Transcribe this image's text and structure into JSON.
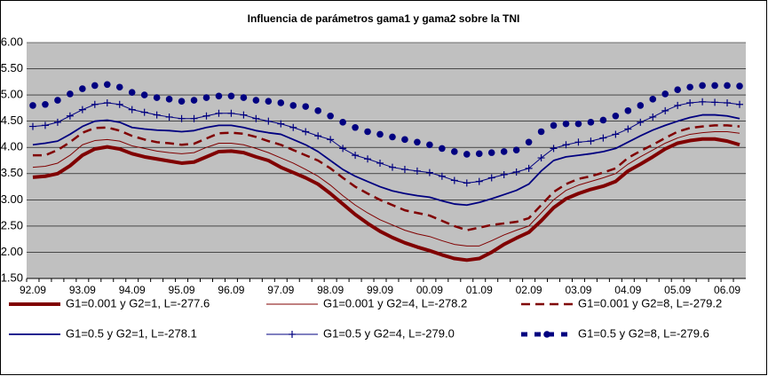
{
  "chart_data": {
    "type": "line",
    "title": "Influencia de parámetros gama1 y gama2 sobre la TNI",
    "categories": [
      "92.09",
      null,
      null,
      null,
      "93.09",
      null,
      null,
      null,
      "94.09",
      null,
      null,
      null,
      "95.09",
      null,
      null,
      null,
      "96.09",
      null,
      null,
      null,
      "97.09",
      null,
      null,
      null,
      "98.09",
      null,
      null,
      null,
      "99.09",
      null,
      null,
      null,
      "00.09",
      null,
      null,
      null,
      "01.09",
      null,
      null,
      null,
      "02.09",
      null,
      null,
      null,
      "03.09",
      null,
      null,
      null,
      "04.09",
      null,
      null,
      null,
      "05.09",
      null,
      null,
      null,
      "06.09",
      null
    ],
    "ylim": [
      1.5,
      6.0
    ],
    "yticks": [
      {
        "value": 1.5,
        "label": "1.50"
      },
      {
        "value": 2.0,
        "label": "2.00"
      },
      {
        "value": 2.5,
        "label": "2.50"
      },
      {
        "value": 3.0,
        "label": "3.00"
      },
      {
        "value": 3.5,
        "label": "3.50"
      },
      {
        "value": 4.0,
        "label": "4.00"
      },
      {
        "value": 4.5,
        "label": "4.50"
      },
      {
        "value": 5.0,
        "label": "5.00"
      },
      {
        "value": 5.5,
        "label": "5.50"
      },
      {
        "value": 6.0,
        "label": "6.00"
      }
    ],
    "grid": true,
    "legend": "bottom",
    "series": [
      {
        "name": "G1=0.001 y G2=1, L=-277.6",
        "color": "#800000",
        "line_style": "thick",
        "marker": "none",
        "values": [
          3.43,
          3.45,
          3.5,
          3.65,
          3.85,
          3.97,
          4.01,
          3.97,
          3.88,
          3.82,
          3.78,
          3.74,
          3.7,
          3.72,
          3.82,
          3.92,
          3.93,
          3.9,
          3.82,
          3.75,
          3.62,
          3.52,
          3.42,
          3.3,
          3.12,
          2.92,
          2.72,
          2.55,
          2.4,
          2.28,
          2.18,
          2.1,
          2.03,
          1.95,
          1.88,
          1.85,
          1.88,
          2.0,
          2.15,
          2.27,
          2.38,
          2.6,
          2.85,
          3.02,
          3.12,
          3.2,
          3.26,
          3.35,
          3.55,
          3.68,
          3.82,
          3.97,
          4.08,
          4.13,
          4.16,
          4.16,
          4.12,
          4.05
        ]
      },
      {
        "name": "G1=0.001 y G2=4, L=-278.2",
        "color": "#800000",
        "line_style": "thin",
        "marker": "none",
        "values": [
          3.62,
          3.64,
          3.7,
          3.85,
          4.05,
          4.13,
          4.15,
          4.12,
          4.03,
          3.98,
          3.93,
          3.9,
          3.88,
          3.9,
          4.0,
          4.08,
          4.08,
          4.05,
          3.98,
          3.9,
          3.8,
          3.7,
          3.58,
          3.45,
          3.28,
          3.08,
          2.9,
          2.75,
          2.62,
          2.52,
          2.42,
          2.35,
          2.3,
          2.22,
          2.15,
          2.12,
          2.12,
          2.22,
          2.33,
          2.42,
          2.5,
          2.75,
          3.0,
          3.18,
          3.28,
          3.35,
          3.42,
          3.5,
          3.68,
          3.82,
          3.95,
          4.08,
          4.18,
          4.25,
          4.28,
          4.3,
          4.3,
          4.27
        ]
      },
      {
        "name": "G1=0.001 y G2=8, L=-279.2",
        "color": "#800000",
        "line_style": "dashed",
        "marker": "none",
        "values": [
          3.85,
          3.85,
          3.95,
          4.1,
          4.28,
          4.37,
          4.38,
          4.32,
          4.22,
          4.15,
          4.1,
          4.08,
          4.05,
          4.07,
          4.17,
          4.27,
          4.28,
          4.26,
          4.2,
          4.12,
          4.05,
          3.95,
          3.85,
          3.75,
          3.6,
          3.42,
          3.25,
          3.12,
          3.0,
          2.9,
          2.8,
          2.75,
          2.7,
          2.6,
          2.5,
          2.42,
          2.47,
          2.52,
          2.55,
          2.58,
          2.65,
          2.9,
          3.15,
          3.3,
          3.4,
          3.45,
          3.52,
          3.6,
          3.8,
          3.93,
          4.05,
          4.18,
          4.3,
          4.37,
          4.4,
          4.42,
          4.42,
          4.4
        ]
      },
      {
        "name": "G1=0.5 y G2=1, L=-278.1",
        "color": "#000080",
        "line_style": "medium",
        "marker": "none",
        "values": [
          4.05,
          4.08,
          4.12,
          4.25,
          4.4,
          4.5,
          4.52,
          4.48,
          4.38,
          4.35,
          4.33,
          4.32,
          4.3,
          4.32,
          4.38,
          4.42,
          4.42,
          4.38,
          4.32,
          4.28,
          4.25,
          4.15,
          4.05,
          3.92,
          3.75,
          3.58,
          3.45,
          3.35,
          3.25,
          3.17,
          3.12,
          3.08,
          3.05,
          2.98,
          2.92,
          2.9,
          2.95,
          3.02,
          3.1,
          3.18,
          3.3,
          3.55,
          3.75,
          3.82,
          3.85,
          3.88,
          3.92,
          3.98,
          4.1,
          4.22,
          4.33,
          4.42,
          4.5,
          4.57,
          4.62,
          4.62,
          4.6,
          4.55
        ]
      },
      {
        "name": "G1=0.5 y G2=4, L=-279.0",
        "color": "#000080",
        "line_style": "thin",
        "marker": "plus",
        "values": [
          4.4,
          4.42,
          4.48,
          4.6,
          4.72,
          4.82,
          4.85,
          4.82,
          4.72,
          4.67,
          4.62,
          4.58,
          4.55,
          4.55,
          4.6,
          4.65,
          4.65,
          4.62,
          4.55,
          4.5,
          4.45,
          4.38,
          4.3,
          4.22,
          4.15,
          3.98,
          3.85,
          3.78,
          3.7,
          3.62,
          3.58,
          3.55,
          3.52,
          3.45,
          3.37,
          3.32,
          3.35,
          3.42,
          3.48,
          3.53,
          3.6,
          3.8,
          3.98,
          4.05,
          4.1,
          4.12,
          4.18,
          4.25,
          4.35,
          4.48,
          4.58,
          4.7,
          4.8,
          4.85,
          4.87,
          4.86,
          4.85,
          4.82
        ]
      },
      {
        "name": "G1=0.5 y G2=8, L=-279.6",
        "color": "#000080",
        "line_style": "none",
        "marker": "circle",
        "values": [
          4.8,
          4.82,
          4.9,
          5.02,
          5.12,
          5.18,
          5.2,
          5.15,
          5.05,
          5.0,
          4.95,
          4.92,
          4.88,
          4.9,
          4.95,
          4.98,
          4.98,
          4.95,
          4.9,
          4.88,
          4.85,
          4.8,
          4.78,
          4.7,
          4.6,
          4.48,
          4.38,
          4.3,
          4.25,
          4.2,
          4.15,
          4.1,
          4.05,
          3.98,
          3.92,
          3.87,
          3.88,
          3.9,
          3.92,
          3.95,
          4.1,
          4.3,
          4.42,
          4.45,
          4.45,
          4.48,
          4.52,
          4.6,
          4.7,
          4.8,
          4.92,
          5.02,
          5.1,
          5.15,
          5.18,
          5.18,
          5.18,
          5.17
        ]
      }
    ]
  }
}
